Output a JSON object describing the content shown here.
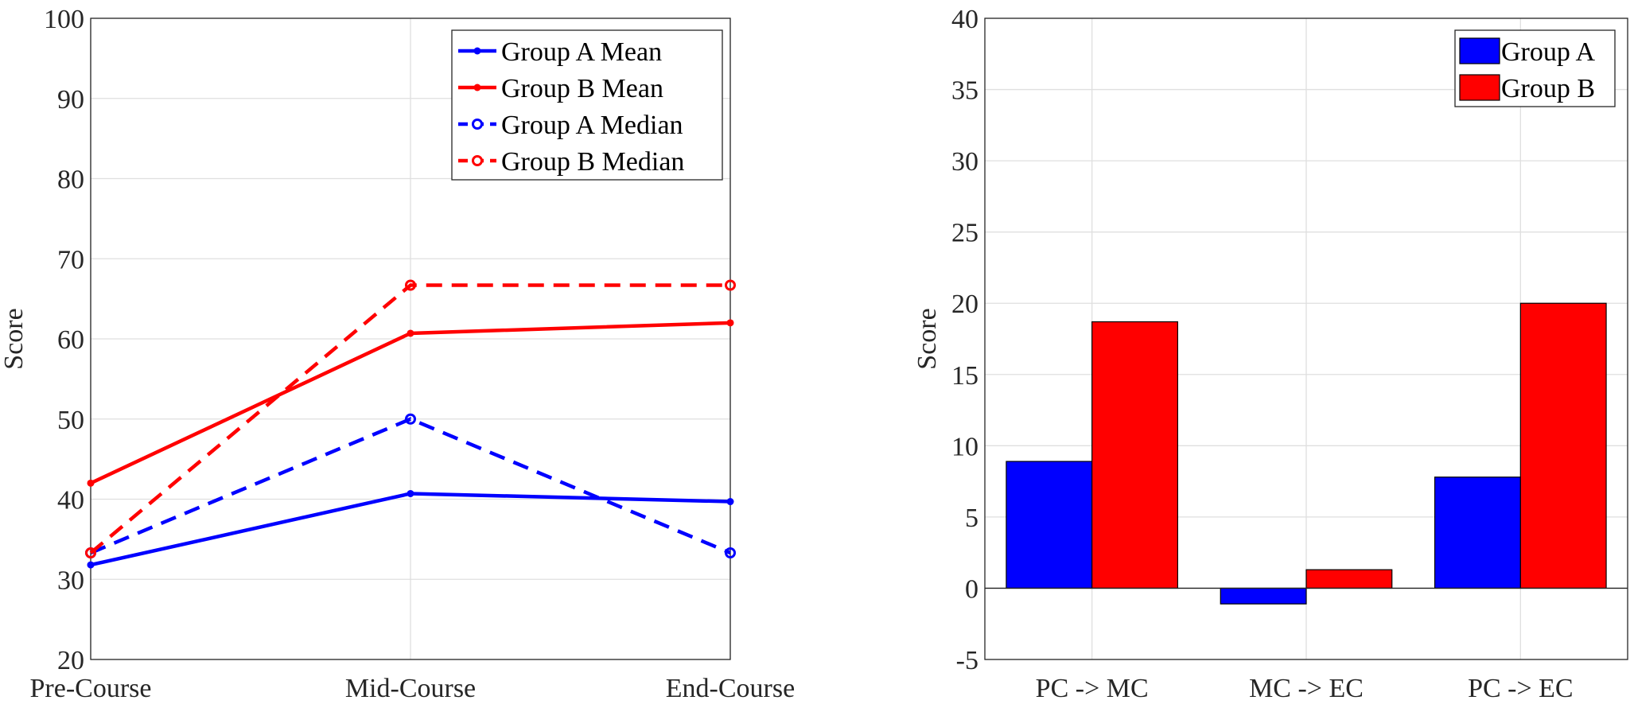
{
  "chart_data": [
    {
      "type": "line",
      "categories": [
        "Pre-Course",
        "Mid-Course",
        "End-Course"
      ],
      "ylabel": "Score",
      "ylim": [
        20,
        100
      ],
      "yticks": [
        20,
        30,
        40,
        50,
        60,
        70,
        80,
        90,
        100
      ],
      "grid": true,
      "legend_position": "top-right",
      "series": [
        {
          "name": "Group A Mean",
          "values": [
            31.8,
            40.7,
            39.7
          ],
          "color": "#0000ff",
          "style": "solid",
          "marker": "filled-dot"
        },
        {
          "name": "Group B Mean",
          "values": [
            42.0,
            60.7,
            62.0
          ],
          "color": "#ff0000",
          "style": "solid",
          "marker": "filled-dot"
        },
        {
          "name": "Group A Median",
          "values": [
            33.3,
            50.0,
            33.3
          ],
          "color": "#0000ff",
          "style": "dashed",
          "marker": "open-circle"
        },
        {
          "name": "Group B Median",
          "values": [
            33.3,
            66.7,
            66.7
          ],
          "color": "#ff0000",
          "style": "dashed",
          "marker": "open-circle"
        }
      ]
    },
    {
      "type": "bar",
      "categories": [
        "PC -> MC",
        "MC -> EC",
        "PC -> EC"
      ],
      "ylabel": "Score",
      "ylim": [
        -5,
        40
      ],
      "yticks": [
        -5,
        0,
        5,
        10,
        15,
        20,
        25,
        30,
        35,
        40
      ],
      "grid": true,
      "legend_position": "top-right",
      "series": [
        {
          "name": "Group A",
          "values": [
            8.9,
            -1.1,
            7.8
          ],
          "color": "#0000ff"
        },
        {
          "name": "Group B",
          "values": [
            18.7,
            1.3,
            20.0
          ],
          "color": "#ff0000"
        }
      ]
    }
  ]
}
